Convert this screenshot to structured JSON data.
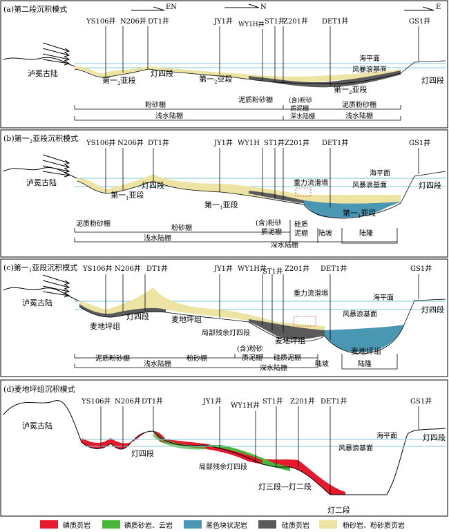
{
  "panels": [
    {
      "title": "(a)第二段沉积模式",
      "wells": [
        "YS106井",
        "N206井",
        "DT1井",
        "JY1井",
        "WY1H井",
        "ST1井",
        "Z201井",
        "DET1井",
        "GS1井"
      ],
      "directions": [
        "EN",
        "N",
        "E"
      ],
      "labels": {
        "paleoland": "泸冕古陆",
        "sea_level": "海平面",
        "storm_base": "风暴浪基面",
        "unit_left": "灯四段",
        "unit_right": "灯四段",
        "sub1": "第一",
        "sub1_sub": "2",
        "sub1_tail": "亚段",
        "sub2": "第一",
        "sub2_sub": "2",
        "sub2_tail": "亚段",
        "sub3": "第一",
        "sub3_sub": "2",
        "sub3_tail": "亚段"
      },
      "facies_top": [
        "粉砂棚",
        "泥质粉砂棚",
        "(含)粉砂",
        "质泥棚",
        "泥质粉砂棚"
      ],
      "facies_bottom": [
        "浅水陆棚",
        "深水陆棚",
        "浅水陆棚"
      ]
    },
    {
      "title": "(b)第一",
      "title_sub": "2",
      "title_tail": "亚段沉积模式",
      "wells": [
        "YS106井",
        "N206井",
        "DT1井",
        "JY1井",
        "WY1H",
        "ST1井",
        "Z201井",
        "DET1井",
        "GS1井"
      ],
      "labels": {
        "paleoland": "泸冕古陆",
        "gravity": "重力流滑塌",
        "sea_level": "海平面",
        "storm_base": "风暴浪基面",
        "unit_left": "灯四段",
        "unit_right": "灯四段",
        "sub_a": "第一",
        "sub_a_sub": "1",
        "sub_a_tail": "亚段",
        "sub_b": "第一",
        "sub_b_sub": "1",
        "sub_b_tail": "亚段",
        "sub_c": "第一",
        "sub_c_sub": "1",
        "sub_c_tail": "亚段"
      },
      "facies_top": [
        "泥质粉砂棚",
        "粉砂棚",
        "(含)粉砂",
        "质泥棚",
        "硅质",
        "泥棚",
        "陆坡",
        "陆隆"
      ],
      "facies_bottom": [
        "浅水陆棚",
        "深水陆棚"
      ]
    },
    {
      "title": "(c)第一",
      "title_sub": "1",
      "title_tail": "亚段沉积模式",
      "wells": [
        "YS106井",
        "N206井",
        "DT1井",
        "JY1井",
        "WY1H井",
        "ST1井",
        "Z201井",
        "DET1井",
        "GS1井"
      ],
      "labels": {
        "paleoland": "泸冕古陆",
        "gravity": "重力流滑塌",
        "sea_level": "海平面",
        "storm_base": "风暴浪基面",
        "unit_left": "灯四段",
        "unit_right": "灯四段",
        "mdp1": "麦地坪组",
        "mdp2": "麦地坪组",
        "mdp3": "麦地坪组",
        "mdp4": "麦地坪组",
        "residual": "局部残余灯四段"
      },
      "facies_top": [
        "泥质粉砂棚",
        "粉砂棚",
        "(含)粉砂",
        "质泥棚",
        "硅质泥棚",
        "陆坡",
        "陆隆"
      ],
      "facies_bottom": [
        "浅水陆棚",
        "深水陆棚"
      ]
    },
    {
      "title": "(d)麦地坪组沉积模式",
      "wells": [
        "YS106井",
        "N206井",
        "DT1井",
        "JY1井",
        "WY1H井",
        "ST1井",
        "Z201井",
        "DET1井",
        "GS1井"
      ],
      "labels": {
        "paleoland": "泸冕古陆",
        "sea_level": "海平面",
        "storm_base": "风暴浪基面",
        "unit_left": "灯四段",
        "unit_right": "灯四段",
        "residual": "局部残余灯四段",
        "d3d2": "灯三段—灯二段",
        "d2": "灯二段"
      }
    }
  ],
  "legend": [
    {
      "label": "磷质页岩",
      "color": "#e8192c"
    },
    {
      "label": "磷质砂岩、云岩",
      "color": "#49b83a"
    },
    {
      "label": "黑色块状泥岩",
      "color": "#4a97b4"
    },
    {
      "label": "硅质页岩",
      "color": "#5a5a5a"
    },
    {
      "label": "粉砂岩、粉砂质页岩",
      "color": "#ede3a3"
    }
  ],
  "colors": {
    "siltstone": "#ede3a3",
    "black_mudstone": "#4a97b4",
    "siliceous_shale": "#5a5a5a",
    "phosphatic_shale": "#e8192c",
    "phosphatic_sandstone": "#49b83a",
    "sea_level": "#7ec8d6"
  }
}
